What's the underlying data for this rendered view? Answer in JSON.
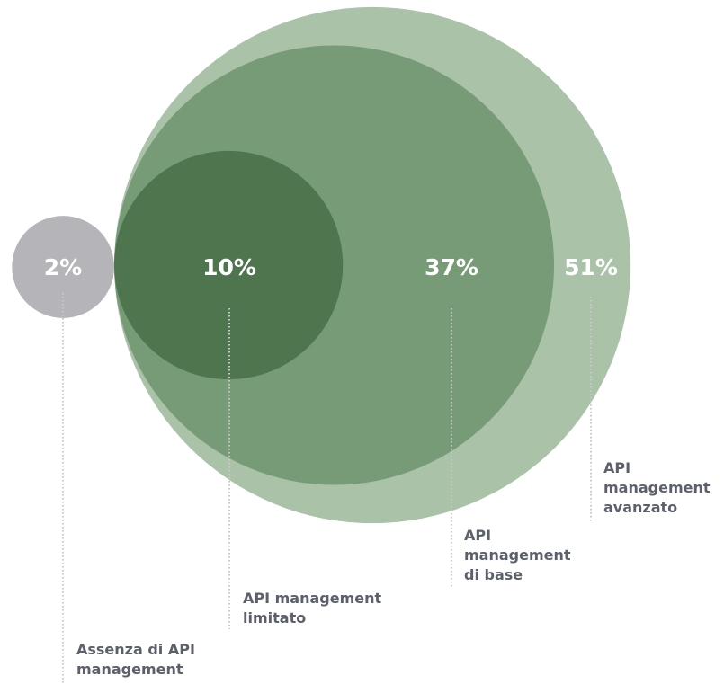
{
  "chart_data": {
    "type": "bubble",
    "categories": [
      "Assenza di API management",
      "API management limitato",
      "API management di base",
      "API management avanzato"
    ],
    "values": [
      2,
      10,
      37,
      51
    ],
    "value_labels": [
      "2%",
      "10%",
      "37%",
      "51%"
    ],
    "colors": [
      "#b4b4b9",
      "#4f754e",
      "#789b77",
      "#a9c2a8"
    ]
  }
}
